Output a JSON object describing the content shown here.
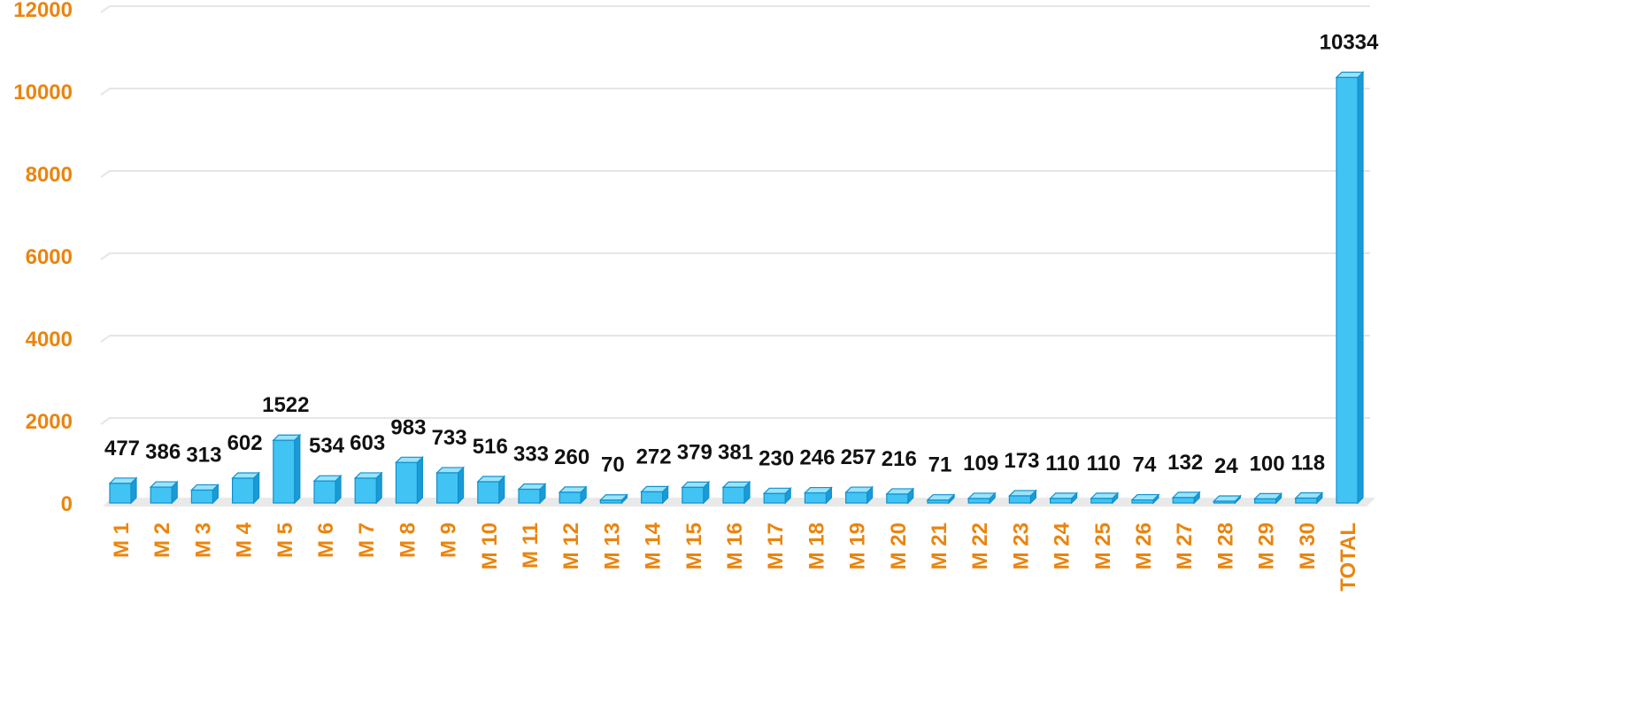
{
  "chart_data": {
    "type": "bar",
    "title": "",
    "xlabel": "",
    "ylabel": "",
    "ylim": [
      0,
      12000
    ],
    "yticks": [
      "0",
      "2000",
      "4000",
      "6000",
      "8000",
      "10000",
      "12000"
    ],
    "grid": true,
    "categories": [
      "M 1",
      "M 2",
      "M 3",
      "M 4",
      "M 5",
      "M 6",
      "M 7",
      "M 8",
      "M 9",
      "M 10",
      "M 11",
      "M 12",
      "M 13",
      "M 14",
      "M 15",
      "M 16",
      "M 17",
      "M 18",
      "M 19",
      "M 20",
      "M 21",
      "M 22",
      "M 23",
      "M 24",
      "M 25",
      "M 26",
      "M 27",
      "M 28",
      "M 29",
      "M 30",
      "TOTAL"
    ],
    "values": [
      477,
      386,
      313,
      602,
      1522,
      534,
      603,
      983,
      733,
      516,
      333,
      260,
      70,
      272,
      379,
      381,
      230,
      246,
      257,
      216,
      71,
      109,
      173,
      110,
      110,
      74,
      132,
      24,
      100,
      118,
      10334
    ],
    "colors": {
      "bar_front": "#41c4f4",
      "bar_side": "#1a9bd6",
      "bar_top": "#9ae3fb",
      "bar_stroke": "#1190cc",
      "axis_text": "#e9850f",
      "data_label": "#111111",
      "grid": "#e6e6e6",
      "floor": "#e9e9e9"
    }
  }
}
